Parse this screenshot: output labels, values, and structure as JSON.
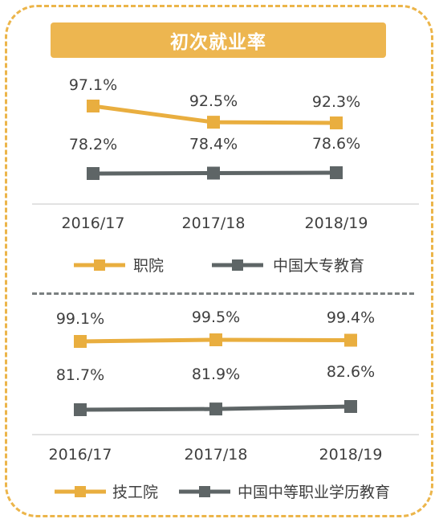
{
  "title": "初次就业率",
  "colors": {
    "orange": "#e9ae3f",
    "gray": "#5e6566",
    "title_bg": "#edb650",
    "frame": "#ecb54a"
  },
  "chart_data": [
    {
      "type": "line",
      "categories": [
        "2016/17",
        "2017/18",
        "2018/19"
      ],
      "series": [
        {
          "name": "职院",
          "values": [
            97.1,
            92.5,
            92.3
          ],
          "labels": [
            "97.1%",
            "92.5%",
            "92.3%"
          ],
          "color": "#e9ae3f"
        },
        {
          "name": "中国大专教育",
          "values": [
            78.2,
            78.4,
            78.6
          ],
          "labels": [
            "78.2%",
            "78.4%",
            "78.6%"
          ],
          "color": "#5e6566"
        }
      ],
      "legend": "bottom",
      "grid": false
    },
    {
      "type": "line",
      "categories": [
        "2016/17",
        "2017/18",
        "2018/19"
      ],
      "series": [
        {
          "name": "技工院",
          "values": [
            99.1,
            99.5,
            99.4
          ],
          "labels": [
            "99.1%",
            "99.5%",
            "99.4%"
          ],
          "color": "#e9ae3f"
        },
        {
          "name": "中国中等职业学历教育",
          "values": [
            81.7,
            81.9,
            82.6
          ],
          "labels": [
            "81.7%",
            "81.9%",
            "82.6%"
          ],
          "color": "#5e6566"
        }
      ],
      "legend": "bottom",
      "grid": false
    }
  ]
}
